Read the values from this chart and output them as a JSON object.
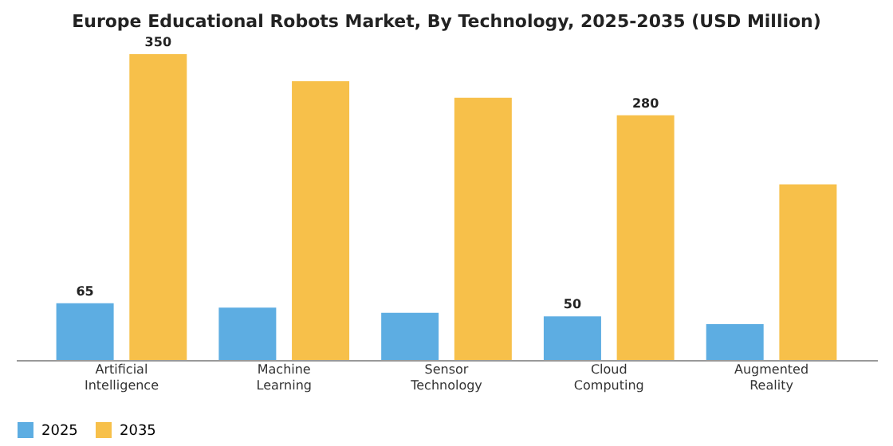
{
  "chart_data": {
    "type": "bar",
    "title": "Europe Educational Robots Market, By Technology, 2025-2035 (USD Million)",
    "categories": [
      "Artificial Intelligence",
      "Machine Learning",
      "Sensor Technology",
      "Cloud Computing",
      "Augmented Reality"
    ],
    "series": [
      {
        "name": "2025",
        "color": "#5dade2",
        "values": [
          65,
          60,
          54,
          50,
          41
        ],
        "value_labels": [
          "65",
          null,
          null,
          "50",
          null
        ]
      },
      {
        "name": "2035",
        "color": "#f7c04a",
        "values": [
          350,
          319,
          300,
          280,
          201
        ],
        "value_labels": [
          "350",
          null,
          null,
          "280",
          null
        ]
      }
    ],
    "legend": "bottom",
    "grid": false
  }
}
